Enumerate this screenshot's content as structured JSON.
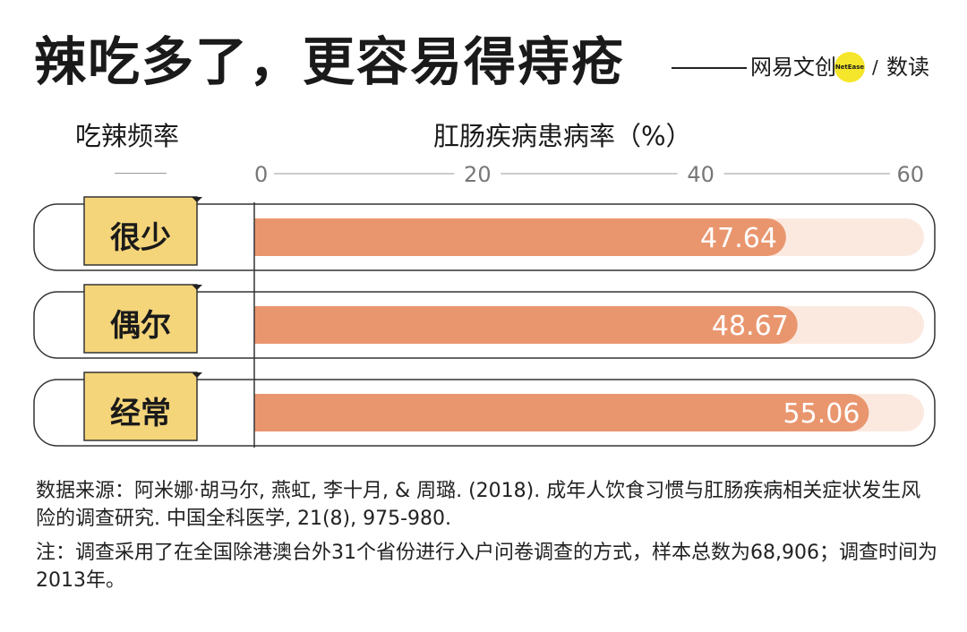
{
  "title": "辣吃多了，更容易得痔疮",
  "brand": {
    "name": "网易文创",
    "badge": "NetEase",
    "slash": "/",
    "sub": "数读",
    "accent": "#f6e62b"
  },
  "left_header": "吃辣频率",
  "chart_data": {
    "type": "bar",
    "orientation": "horizontal",
    "title": "",
    "ylabel": "肛肠疾病患病率（%）",
    "categories": [
      "很少",
      "偶尔",
      "经常"
    ],
    "values": [
      47.64,
      48.67,
      55.06
    ],
    "value_labels": [
      "47.64",
      "48.67",
      "55.06"
    ],
    "xlim": [
      0,
      60
    ],
    "ticks": [
      0,
      20,
      40,
      60
    ],
    "tick_labels": [
      "0",
      "20",
      "40",
      "60"
    ],
    "colors": {
      "bar": "#e9966f",
      "track": "#fbe9e0",
      "label_box": "#f5d57a"
    },
    "grid": false,
    "legend": "none"
  },
  "footnotes": {
    "source": "数据来源：阿米娜·胡马尔, 燕虹, 李十月, & 周璐. (2018). 成年人饮食习惯与肛肠疾病相关症状发生风险的调查研究. 中国全科医学, 21(8), 975-980.",
    "note": "注：调查采用了在全国除港澳台外31个省份进行入户问卷调查的方式，样本总数为68,906；调查时间为2013年。"
  }
}
